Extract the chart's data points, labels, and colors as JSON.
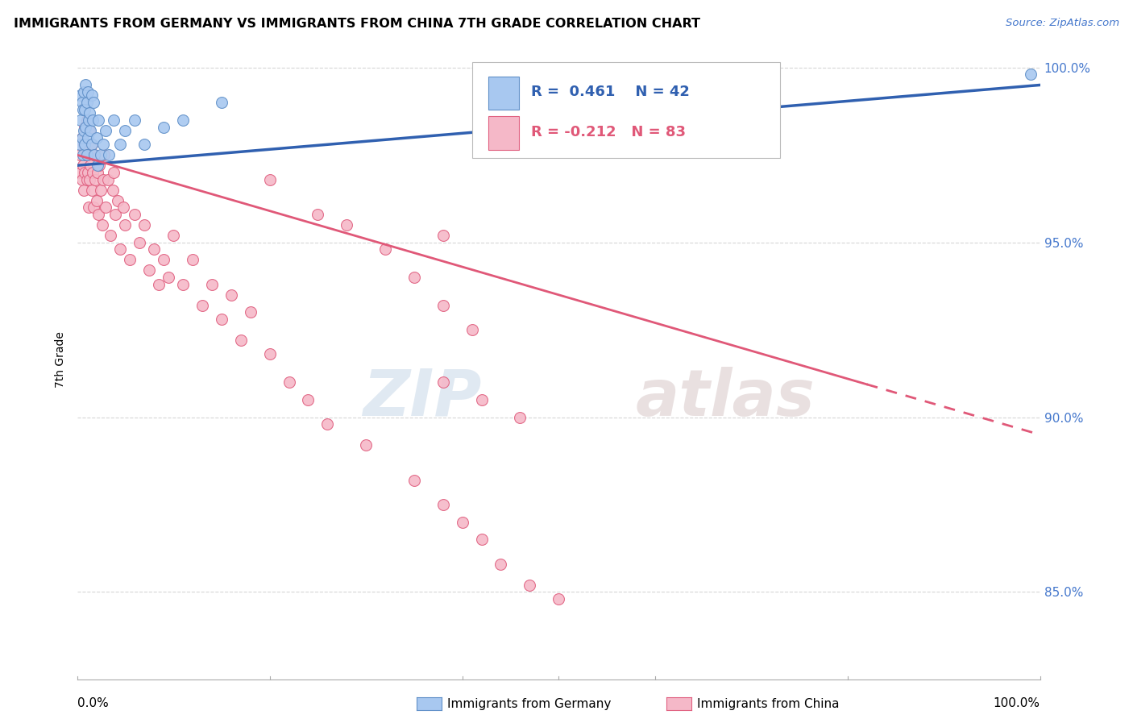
{
  "title": "IMMIGRANTS FROM GERMANY VS IMMIGRANTS FROM CHINA 7TH GRADE CORRELATION CHART",
  "source": "Source: ZipAtlas.com",
  "ylabel": "7th Grade",
  "xmin": 0.0,
  "xmax": 1.0,
  "ymin": 0.825,
  "ymax": 1.008,
  "yticks": [
    0.85,
    0.9,
    0.95,
    1.0
  ],
  "ytick_labels": [
    "85.0%",
    "90.0%",
    "95.0%",
    "100.0%"
  ],
  "germany_color": "#A8C8F0",
  "china_color": "#F5B8C8",
  "germany_edge": "#6090C8",
  "china_edge": "#E06080",
  "trend_germany_color": "#3060B0",
  "trend_china_color": "#E05878",
  "R_germany": 0.461,
  "N_germany": 42,
  "R_china": -0.212,
  "N_china": 83,
  "legend_label_germany": "Immigrants from Germany",
  "legend_label_china": "Immigrants from China",
  "watermark_zip": "ZIP",
  "watermark_atlas": "atlas",
  "background_color": "#FFFFFF",
  "grid_color": "#CCCCCC",
  "right_axis_color": "#4477CC",
  "germany_x": [
    0.003,
    0.004,
    0.004,
    0.005,
    0.005,
    0.006,
    0.006,
    0.007,
    0.007,
    0.008,
    0.008,
    0.009,
    0.009,
    0.01,
    0.01,
    0.011,
    0.011,
    0.012,
    0.013,
    0.014,
    0.015,
    0.015,
    0.016,
    0.017,
    0.018,
    0.02,
    0.021,
    0.022,
    0.025,
    0.027,
    0.03,
    0.033,
    0.038,
    0.045,
    0.05,
    0.06,
    0.07,
    0.09,
    0.11,
    0.15,
    0.68,
    0.99
  ],
  "germany_y": [
    0.978,
    0.985,
    0.992,
    0.98,
    0.99,
    0.975,
    0.988,
    0.982,
    0.993,
    0.978,
    0.988,
    0.983,
    0.995,
    0.975,
    0.99,
    0.98,
    0.993,
    0.985,
    0.987,
    0.982,
    0.978,
    0.992,
    0.985,
    0.99,
    0.975,
    0.98,
    0.972,
    0.985,
    0.975,
    0.978,
    0.982,
    0.975,
    0.985,
    0.978,
    0.982,
    0.985,
    0.978,
    0.983,
    0.985,
    0.99,
    0.992,
    0.998
  ],
  "china_x": [
    0.003,
    0.004,
    0.005,
    0.005,
    0.006,
    0.007,
    0.007,
    0.008,
    0.008,
    0.009,
    0.01,
    0.01,
    0.011,
    0.012,
    0.012,
    0.013,
    0.013,
    0.014,
    0.015,
    0.015,
    0.016,
    0.017,
    0.018,
    0.019,
    0.02,
    0.021,
    0.022,
    0.023,
    0.025,
    0.026,
    0.027,
    0.028,
    0.03,
    0.032,
    0.035,
    0.037,
    0.038,
    0.04,
    0.042,
    0.045,
    0.048,
    0.05,
    0.055,
    0.06,
    0.065,
    0.07,
    0.075,
    0.08,
    0.085,
    0.09,
    0.095,
    0.1,
    0.11,
    0.12,
    0.13,
    0.14,
    0.15,
    0.16,
    0.17,
    0.18,
    0.2,
    0.22,
    0.24,
    0.26,
    0.3,
    0.35,
    0.38,
    0.4,
    0.42,
    0.44,
    0.47,
    0.5,
    0.38,
    0.42,
    0.46,
    0.38,
    0.2,
    0.25,
    0.28,
    0.32,
    0.35,
    0.38,
    0.41
  ],
  "china_y": [
    0.975,
    0.97,
    0.98,
    0.968,
    0.972,
    0.978,
    0.965,
    0.97,
    0.983,
    0.975,
    0.968,
    0.985,
    0.97,
    0.975,
    0.96,
    0.968,
    0.982,
    0.972,
    0.965,
    0.978,
    0.97,
    0.96,
    0.975,
    0.968,
    0.962,
    0.97,
    0.958,
    0.972,
    0.965,
    0.955,
    0.968,
    0.975,
    0.96,
    0.968,
    0.952,
    0.965,
    0.97,
    0.958,
    0.962,
    0.948,
    0.96,
    0.955,
    0.945,
    0.958,
    0.95,
    0.955,
    0.942,
    0.948,
    0.938,
    0.945,
    0.94,
    0.952,
    0.938,
    0.945,
    0.932,
    0.938,
    0.928,
    0.935,
    0.922,
    0.93,
    0.918,
    0.91,
    0.905,
    0.898,
    0.892,
    0.882,
    0.875,
    0.87,
    0.865,
    0.858,
    0.852,
    0.848,
    0.91,
    0.905,
    0.9,
    0.952,
    0.968,
    0.958,
    0.955,
    0.948,
    0.94,
    0.932,
    0.925
  ]
}
